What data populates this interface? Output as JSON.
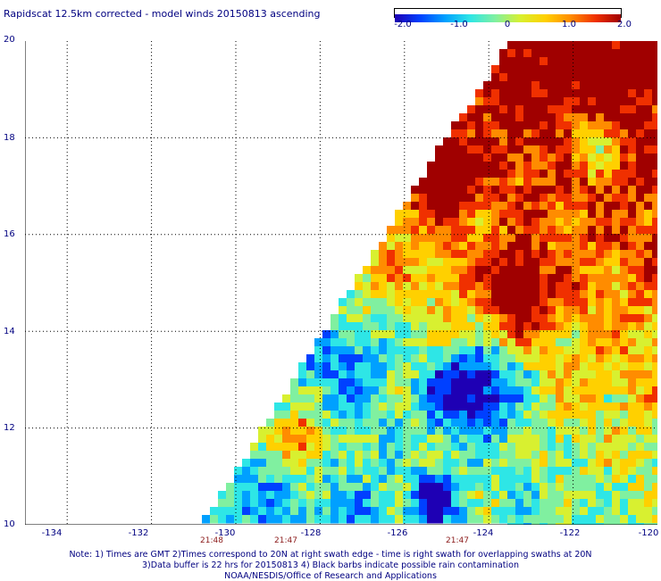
{
  "title": "Rapidscat 12.5km corrected - model winds 20150813 ascending",
  "colorbar": {
    "colors": [
      "#1e00b4",
      "#0040ff",
      "#00a0ff",
      "#2ee6e6",
      "#80f0a0",
      "#d8f030",
      "#ffd000",
      "#ff8c00",
      "#f03000",
      "#a00000"
    ],
    "labels": [
      "-2.0",
      "-1.0",
      "0",
      "1.0",
      "2.0"
    ]
  },
  "map": {
    "lon_range": [
      -135,
      -120
    ],
    "lat_range": [
      10,
      20
    ],
    "lat_labels": [
      "20",
      "18",
      "16",
      "14",
      "12",
      "10"
    ],
    "lon_labels": [
      "-134",
      "-132",
      "-130",
      "-128",
      "-126",
      "-124",
      "-122",
      "-120"
    ],
    "time_labels": [
      {
        "text": "21:48",
        "lon": -130.5
      },
      {
        "text": "21:47",
        "lon": -128.6
      },
      {
        "text": "21:47",
        "lon": -124.6
      }
    ],
    "swath_edge": [
      [
        -130.8,
        10
      ],
      [
        -124.8,
        18.3
      ],
      [
        -124.0,
        19.2
      ],
      [
        -123.6,
        20
      ]
    ],
    "gridlines": true
  },
  "notes": [
    "Note: 1) Times are GMT 2)Times correspond to 20N at right swath edge - time is right swath for overlapping swaths at 20N",
    "3)Data buffer is 22 hrs for 20150813 4) Black barbs indicate possible rain contamination",
    "NOAA/NESDIS/Office of Research and Applications"
  ]
}
